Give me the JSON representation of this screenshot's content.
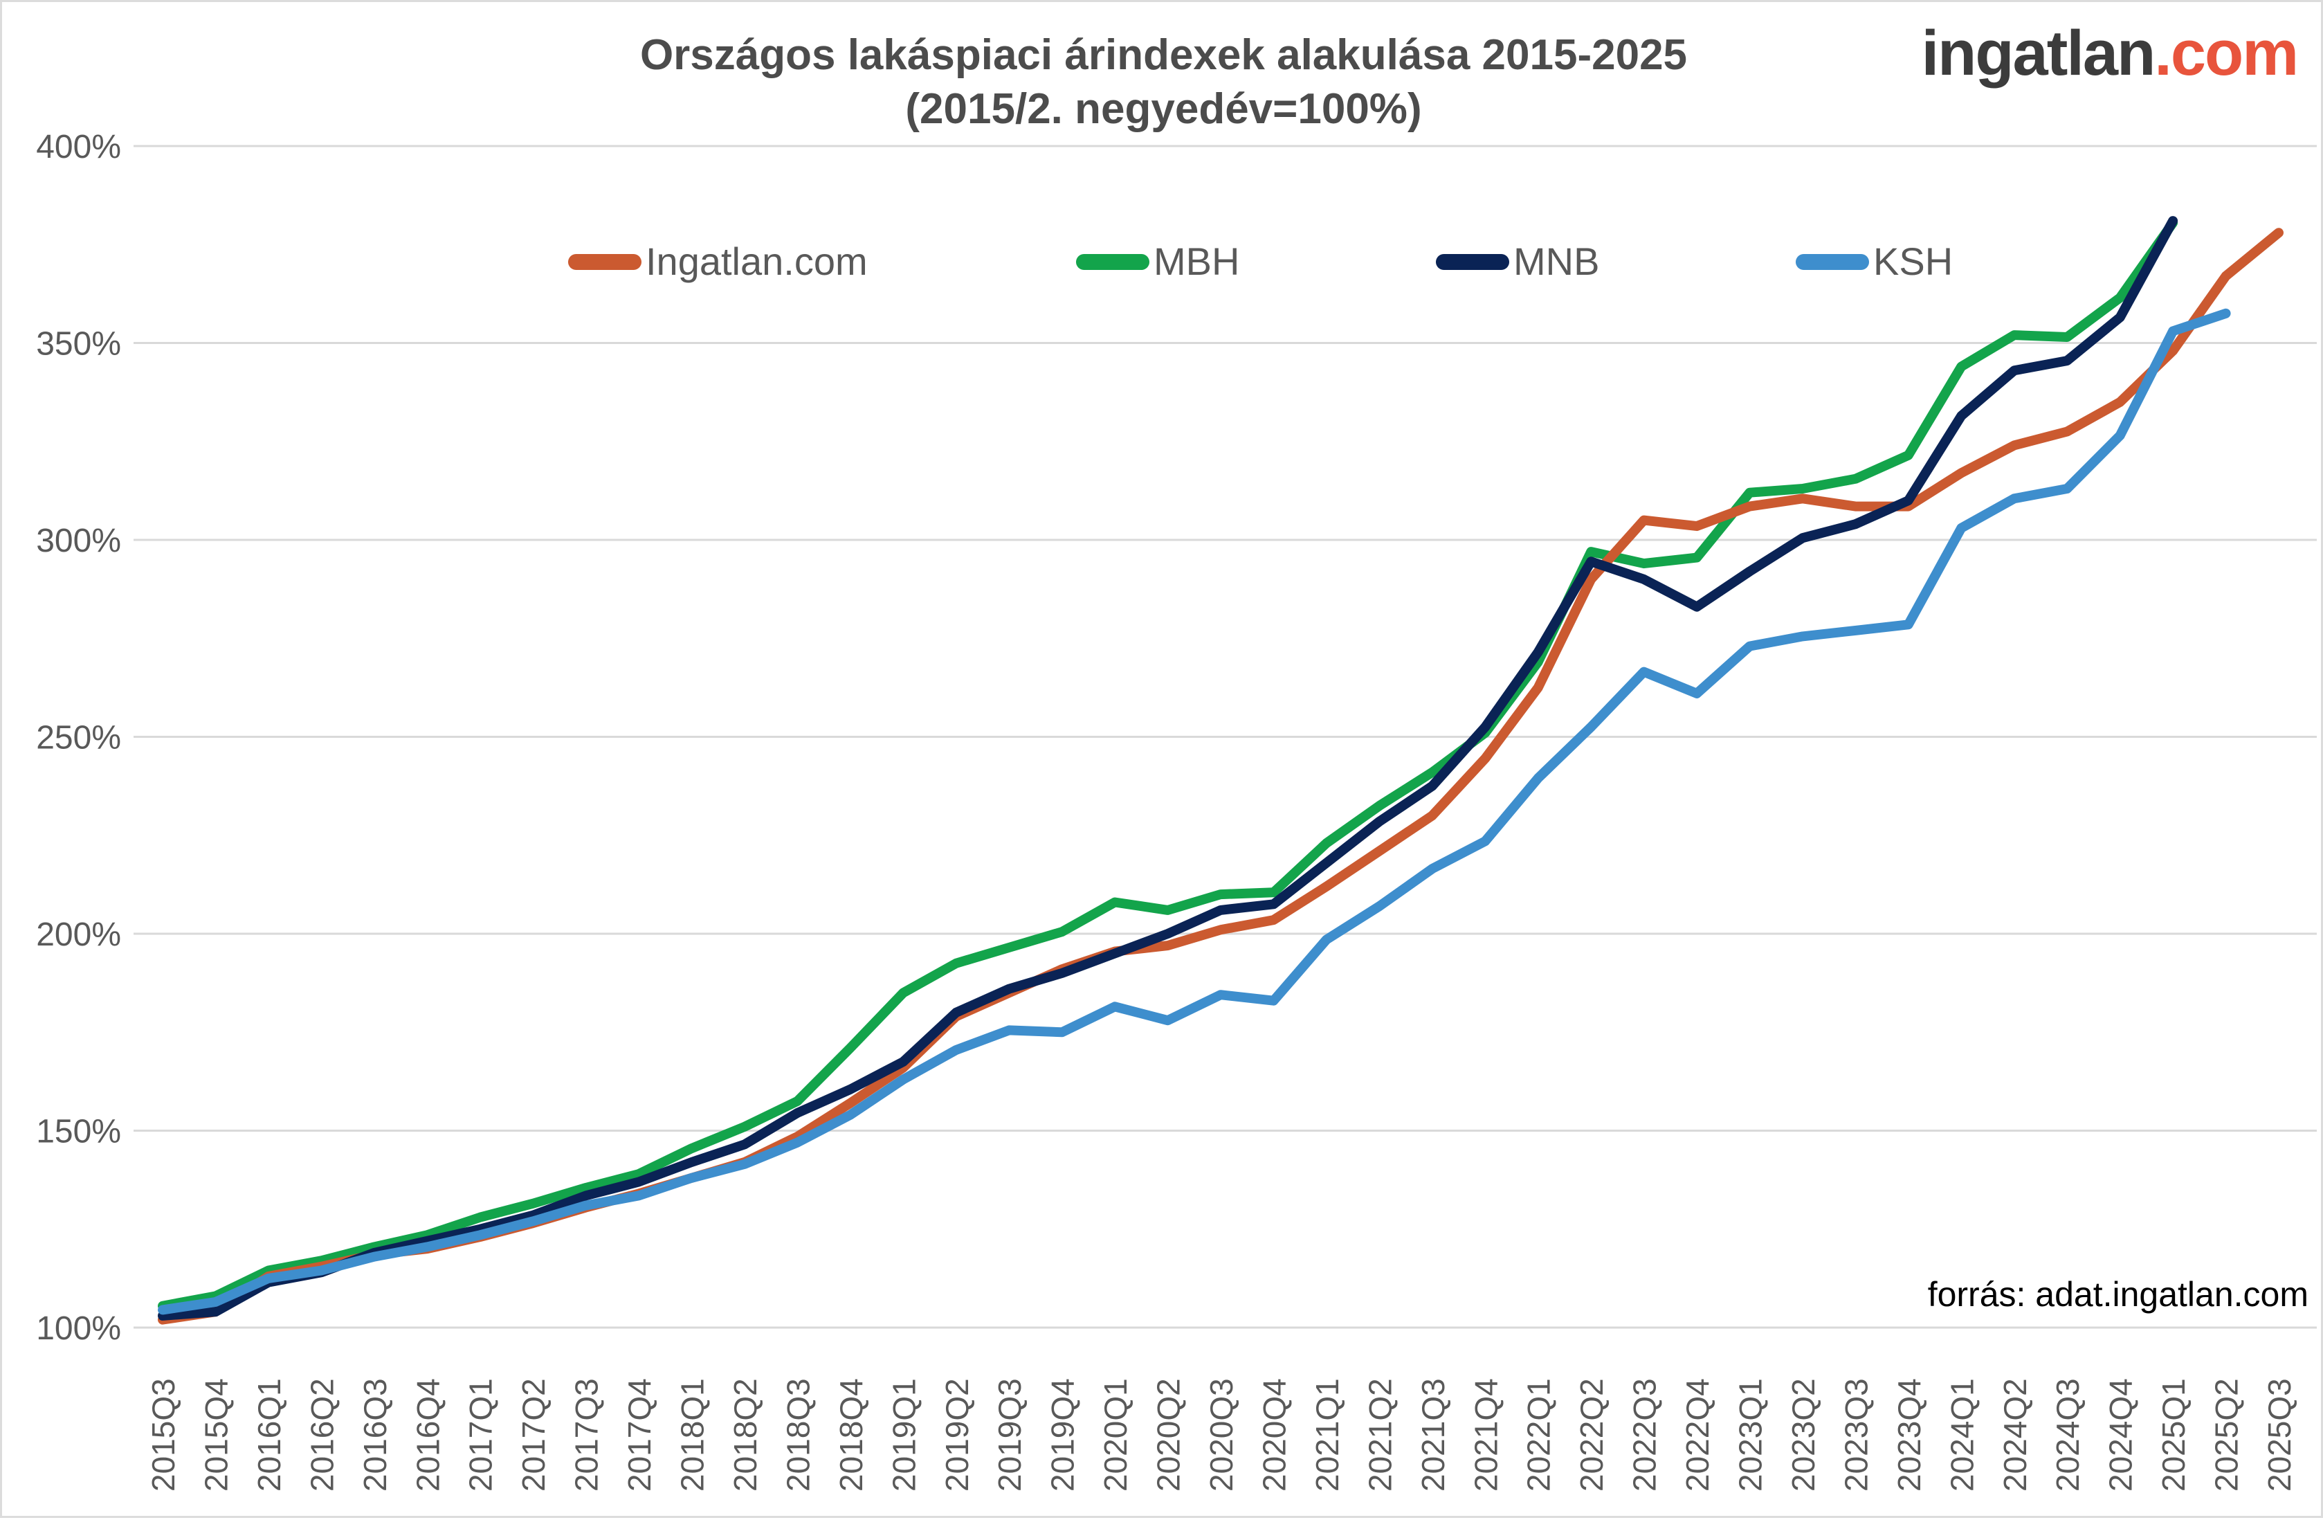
{
  "title": {
    "line1": "Országos lakáspiaci árindexek alakulása 2015-2025",
    "line2": "(2015/2. negyedév=100%)"
  },
  "logo": {
    "text_dark": "ingatlan",
    "text_accent": ".com"
  },
  "source_note": "forrás: adat.ingatlan.com",
  "colors": {
    "title_gray": "#4c4c4c",
    "axis_label_gray": "#595959",
    "gridline_gray": "#d9d9d9",
    "logo_dark": "#3c3c3c",
    "logo_accent": "#e8543c"
  },
  "chart_data": {
    "type": "line",
    "title": "Országos lakáspiaci árindexek alakulása 2015-2025 (2015/2. negyedév=100%)",
    "grid": true,
    "legend_position": "top",
    "ylim": [
      100,
      400
    ],
    "ytick_values": [
      100,
      150,
      200,
      250,
      300,
      350,
      400
    ],
    "ytick_labels": [
      "100%",
      "150%",
      "200%",
      "250%",
      "300%",
      "350%",
      "400%"
    ],
    "x_labels": [
      "2015Q3",
      "2015Q4",
      "2016Q1",
      "2016Q2",
      "2016Q3",
      "2016Q4",
      "2017Q1",
      "2017Q2",
      "2017Q3",
      "2017Q4",
      "2018Q1",
      "2018Q2",
      "2018Q3",
      "2018Q4",
      "2019Q1",
      "2019Q2",
      "2019Q3",
      "2019Q4",
      "2020Q1",
      "2020Q2",
      "2020Q3",
      "2020Q4",
      "2021Q1",
      "2021Q2",
      "2021Q3",
      "2021Q4",
      "2022Q1",
      "2022Q2",
      "2022Q3",
      "2022Q4",
      "2023Q1",
      "2023Q2",
      "2023Q3",
      "2023Q4",
      "2024Q1",
      "2024Q2",
      "2024Q3",
      "2024Q4",
      "2025Q1",
      "2025Q2",
      "2025Q3"
    ],
    "series": [
      {
        "name": "MBH",
        "color": "#13a44b",
        "values": [
          105.5,
          108,
          114.5,
          117,
          120.5,
          123.5,
          128,
          131.5,
          135.5,
          139,
          145.5,
          151,
          157.5,
          171,
          185,
          192.5,
          196.5,
          200.5,
          208,
          206,
          210,
          210.5,
          223,
          232.5,
          241,
          251,
          269,
          297,
          294,
          295.5,
          312,
          313,
          315.5,
          321.5,
          344,
          352,
          351.5,
          361.5,
          380.5,
          null,
          null
        ]
      },
      {
        "name": "Ingatlan.com",
        "color": "#cb5a30",
        "values": [
          102,
          104,
          113,
          115.5,
          118.5,
          120,
          123,
          126.5,
          130.5,
          134,
          138,
          142,
          148.5,
          157,
          166,
          179,
          185,
          191,
          195.5,
          197,
          201,
          203.5,
          212,
          221,
          230,
          244.5,
          262.5,
          290,
          305,
          303.5,
          308.5,
          310.5,
          308.5,
          308.5,
          317,
          324,
          327.5,
          335,
          348,
          367,
          378
        ]
      },
      {
        "name": "MNB",
        "color": "#0a2355",
        "values": [
          103,
          104,
          111.5,
          114,
          119,
          122,
          125,
          128.5,
          133.5,
          137,
          142,
          146.5,
          154.5,
          160.5,
          167.5,
          180,
          186,
          190,
          195,
          200,
          206,
          207.5,
          218,
          228.5,
          237.5,
          252.5,
          271.5,
          294.5,
          290,
          283,
          292,
          300.5,
          304,
          310,
          331.5,
          343,
          345.5,
          356.5,
          381,
          null,
          null
        ]
      },
      {
        "name": "KSH",
        "color": "#3e8ecd",
        "values": [
          104.5,
          106.5,
          112.5,
          114.5,
          118,
          120.5,
          123.5,
          127,
          131,
          133.5,
          138,
          141.5,
          147,
          154,
          163,
          170.5,
          175.5,
          175,
          181.5,
          178,
          184.5,
          183,
          198.5,
          207,
          216.5,
          223.5,
          239.5,
          252.5,
          266.5,
          261,
          273,
          275.5,
          277,
          278.5,
          303,
          310.5,
          313,
          326.5,
          353,
          357.5,
          null
        ]
      }
    ],
    "legend_order": [
      "Ingatlan.com",
      "MBH",
      "MNB",
      "KSH"
    ]
  }
}
